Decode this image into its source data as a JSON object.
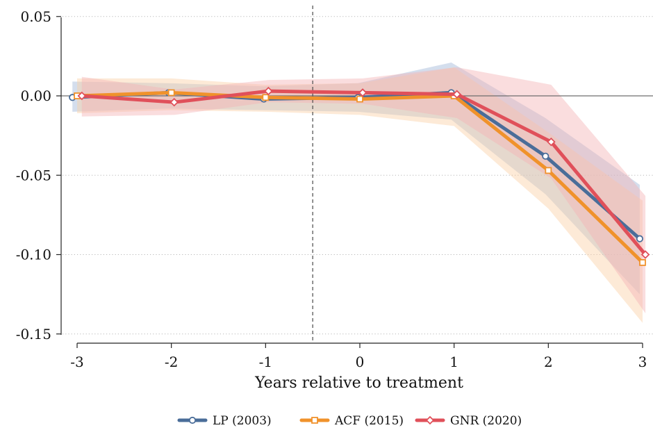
{
  "chart_data": {
    "type": "line",
    "title": "",
    "xlabel": "Years relative to treatment",
    "ylabel": "",
    "x": [
      -3,
      -2,
      -1,
      0,
      1,
      2,
      3
    ],
    "xticks": [
      "-3",
      "-2",
      "-1",
      "0",
      "1",
      "2",
      "3"
    ],
    "yticks": [
      "0.05",
      "0.00",
      "-0.05",
      "-0.10",
      "-0.15"
    ],
    "ytick_values": [
      0.05,
      0.0,
      -0.05,
      -0.1,
      -0.15
    ],
    "xlim": [
      -3.05,
      3.05
    ],
    "ylim": [
      -0.15,
      0.05
    ],
    "reference_hline": 0,
    "reference_vline": -0.5,
    "grid": "horizontal dotted",
    "legend_position": "bottom",
    "series": [
      {
        "name": "LP (2003)",
        "color": "#4a6d99",
        "marker": "circle",
        "x": [
          -3.05,
          -2.03,
          -1.02,
          -0.02,
          0.97,
          1.97,
          2.97
        ],
        "values": [
          -0.001,
          0.002,
          -0.002,
          -0.001,
          0.002,
          -0.038,
          -0.09
        ],
        "ci_lower": [
          -0.01,
          -0.008,
          -0.009,
          -0.01,
          -0.015,
          -0.062,
          -0.125
        ],
        "ci_upper": [
          0.009,
          0.008,
          0.006,
          0.008,
          0.021,
          -0.014,
          -0.056
        ],
        "band_color": "#9fb5d6"
      },
      {
        "name": "ACF (2015)",
        "color": "#f0922b",
        "marker": "square",
        "x": [
          -3.0,
          -2.0,
          -1.0,
          0.0,
          1.0,
          2.0,
          3.0
        ],
        "values": [
          0.0,
          0.002,
          -0.001,
          -0.002,
          0.0,
          -0.047,
          -0.105
        ],
        "ci_lower": [
          -0.011,
          -0.009,
          -0.01,
          -0.012,
          -0.019,
          -0.071,
          -0.143
        ],
        "ci_upper": [
          0.011,
          0.011,
          0.007,
          0.008,
          0.018,
          -0.023,
          -0.066
        ],
        "band_color": "#fbd0a7"
      },
      {
        "name": "GNR (2020)",
        "color": "#e0505a",
        "marker": "diamond",
        "x": [
          -2.95,
          -1.97,
          -0.97,
          0.03,
          1.03,
          2.03,
          3.03
        ],
        "values": [
          0.0,
          -0.004,
          0.003,
          0.002,
          0.001,
          -0.029,
          -0.1
        ],
        "ci_lower": [
          -0.013,
          -0.012,
          -0.004,
          -0.005,
          -0.014,
          -0.052,
          -0.137
        ],
        "ci_upper": [
          0.012,
          0.004,
          0.01,
          0.011,
          0.018,
          0.007,
          -0.063
        ],
        "band_color": "#f5b3b5"
      }
    ]
  }
}
